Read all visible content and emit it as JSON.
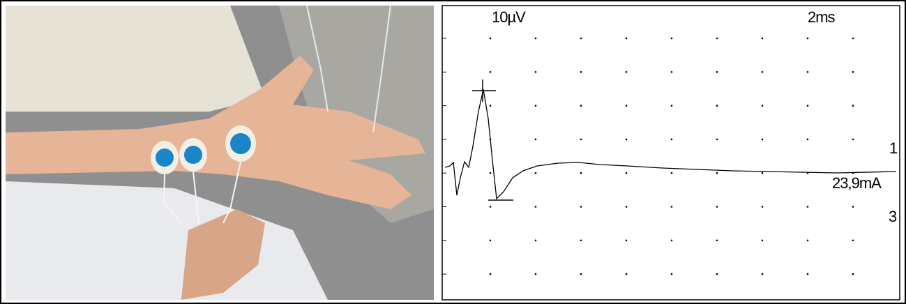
{
  "trace_panel": {
    "amplitude_scale": "10µV",
    "time_scale": "2ms",
    "marker_1": "1",
    "stimulus_intensity": "23,9mA",
    "marker_3": "3"
  }
}
